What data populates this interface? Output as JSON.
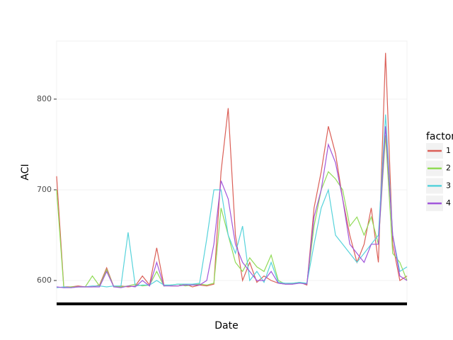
{
  "chart_data": {
    "type": "line",
    "x_label": "Date",
    "y_label": "ACI",
    "legend_title": "factor",
    "x": [
      0,
      1,
      2,
      3,
      4,
      5,
      6,
      7,
      8,
      9,
      10,
      11,
      12,
      13,
      14,
      15,
      16,
      17,
      18,
      19,
      20,
      21,
      22,
      23,
      24,
      25,
      26,
      27,
      28,
      29,
      30,
      31,
      32,
      33,
      34,
      35,
      36,
      37,
      38,
      39,
      40,
      41,
      42,
      43,
      44,
      45,
      46,
      47,
      48,
      49
    ],
    "xlim": [
      0,
      49
    ],
    "ylim": [
      575,
      864
    ],
    "yticks": [
      600,
      700,
      800
    ],
    "grid": true,
    "series": [
      {
        "name": "1",
        "color": "#db5f57",
        "values": [
          715,
          593,
          593,
          594,
          593,
          593,
          595,
          614,
          593,
          594,
          593,
          594,
          605,
          595,
          636,
          595,
          594,
          594,
          596,
          593,
          595,
          594,
          596,
          720,
          790,
          650,
          600,
          620,
          598,
          605,
          600,
          597,
          596,
          596,
          598,
          595,
          680,
          720,
          770,
          740,
          690,
          650,
          620,
          640,
          680,
          620,
          851,
          640,
          600,
          605
        ]
      },
      {
        "name": "2",
        "color": "#91db57",
        "values": [
          700,
          592,
          593,
          593,
          593,
          605,
          594,
          612,
          593,
          593,
          594,
          596,
          594,
          595,
          610,
          594,
          595,
          596,
          594,
          595,
          596,
          595,
          597,
          680,
          650,
          620,
          610,
          625,
          615,
          610,
          628,
          600,
          596,
          597,
          598,
          596,
          660,
          700,
          720,
          712,
          700,
          660,
          670,
          650,
          670,
          640,
          760,
          630,
          620,
          600
        ]
      },
      {
        "name": "3",
        "color": "#57d3db",
        "values": [
          592,
          593,
          592,
          593,
          593,
          594,
          594,
          593,
          594,
          594,
          653,
          594,
          595,
          595,
          600,
          595,
          595,
          596,
          596,
          596,
          597,
          646,
          700,
          700,
          650,
          630,
          660,
          600,
          610,
          598,
          620,
          598,
          597,
          597,
          598,
          597,
          640,
          680,
          700,
          650,
          640,
          630,
          620,
          630,
          640,
          650,
          783,
          650,
          610,
          615
        ]
      },
      {
        "name": "4",
        "color": "#a157db",
        "values": [
          593,
          592,
          592,
          593,
          593,
          593,
          593,
          610,
          593,
          592,
          594,
          593,
          600,
          594,
          620,
          594,
          594,
          594,
          595,
          595,
          595,
          600,
          640,
          710,
          690,
          640,
          620,
          610,
          600,
          600,
          610,
          597,
          596,
          596,
          597,
          596,
          670,
          700,
          750,
          730,
          690,
          640,
          630,
          620,
          640,
          640,
          770,
          650,
          605,
          600
        ]
      }
    ]
  }
}
